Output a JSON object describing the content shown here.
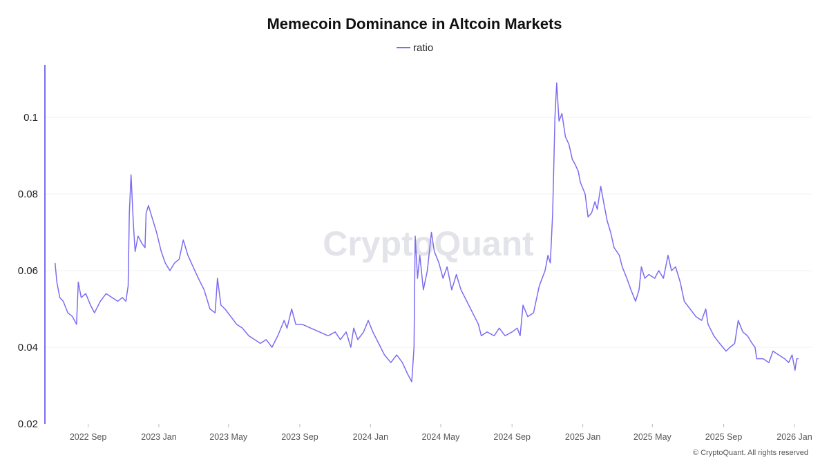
{
  "chart_data": {
    "type": "line",
    "title": "Memecoin Dominance in Altcoin Markets",
    "legend": {
      "position": "top-center",
      "entries": [
        "ratio"
      ]
    },
    "watermark": "CryptoQuant",
    "footer": "© CryptoQuant. All rights reserved",
    "color": "#7b6cf0",
    "grid": true,
    "ylim": [
      0.02,
      0.1137
    ],
    "yticks": [
      "0.02",
      "0.04",
      "0.06",
      "0.08",
      "0.1"
    ],
    "ytick_values": [
      0.02,
      0.04,
      0.06,
      0.08,
      0.1
    ],
    "xticks": [
      "2022 Sep",
      "2023 Jan",
      "2023 May",
      "2023 Sep",
      "2024 Jan",
      "2024 May",
      "2024 Sep",
      "2025 Jan",
      "2025 May",
      "2025 Sep",
      "2026 Jan"
    ],
    "xtick_dates": [
      "2022-09-01",
      "2023-01-01",
      "2023-05-01",
      "2023-09-01",
      "2024-01-01",
      "2024-05-01",
      "2024-09-01",
      "2025-01-01",
      "2025-05-01",
      "2025-09-01",
      "2026-01-01"
    ],
    "xlim": [
      "2022-06-20",
      "2026-01-25"
    ],
    "series": [
      {
        "name": "ratio",
        "x": [
          "2022-07-06",
          "2022-07-09",
          "2022-07-14",
          "2022-07-20",
          "2022-07-28",
          "2022-08-05",
          "2022-08-12",
          "2022-08-15",
          "2022-08-20",
          "2022-08-28",
          "2022-09-05",
          "2022-09-12",
          "2022-09-22",
          "2022-10-02",
          "2022-10-12",
          "2022-10-22",
          "2022-10-30",
          "2022-11-05",
          "2022-11-09",
          "2022-11-11",
          "2022-11-14",
          "2022-11-18",
          "2022-11-21",
          "2022-11-26",
          "2022-12-03",
          "2022-12-08",
          "2022-12-10",
          "2022-12-14",
          "2022-12-20",
          "2022-12-28",
          "2023-01-05",
          "2023-01-12",
          "2023-01-20",
          "2023-01-28",
          "2023-02-05",
          "2023-02-12",
          "2023-02-20",
          "2023-03-01",
          "2023-03-10",
          "2023-03-20",
          "2023-03-30",
          "2023-04-08",
          "2023-04-12",
          "2023-04-18",
          "2023-04-25",
          "2023-05-05",
          "2023-05-15",
          "2023-05-25",
          "2023-06-05",
          "2023-06-15",
          "2023-06-25",
          "2023-07-05",
          "2023-07-15",
          "2023-07-25",
          "2023-08-05",
          "2023-08-10",
          "2023-08-18",
          "2023-08-25",
          "2023-09-05",
          "2023-09-20",
          "2023-10-05",
          "2023-10-20",
          "2023-11-01",
          "2023-11-10",
          "2023-11-20",
          "2023-11-28",
          "2023-12-03",
          "2023-12-10",
          "2023-12-20",
          "2023-12-28",
          "2024-01-05",
          "2024-01-15",
          "2024-01-25",
          "2024-02-05",
          "2024-02-15",
          "2024-02-25",
          "2024-03-05",
          "2024-03-12",
          "2024-03-16",
          "2024-03-18",
          "2024-03-22",
          "2024-03-26",
          "2024-04-01",
          "2024-04-08",
          "2024-04-15",
          "2024-04-20",
          "2024-04-28",
          "2024-05-05",
          "2024-05-12",
          "2024-05-20",
          "2024-05-28",
          "2024-06-05",
          "2024-06-15",
          "2024-06-25",
          "2024-07-05",
          "2024-07-10",
          "2024-07-20",
          "2024-08-01",
          "2024-08-10",
          "2024-08-20",
          "2024-09-01",
          "2024-09-10",
          "2024-09-15",
          "2024-09-20",
          "2024-09-28",
          "2024-10-08",
          "2024-10-18",
          "2024-10-28",
          "2024-11-02",
          "2024-11-06",
          "2024-11-10",
          "2024-11-14",
          "2024-11-17",
          "2024-11-21",
          "2024-11-26",
          "2024-12-02",
          "2024-12-08",
          "2024-12-14",
          "2024-12-18",
          "2024-12-24",
          "2024-12-28",
          "2025-01-05",
          "2025-01-10",
          "2025-01-16",
          "2025-01-22",
          "2025-01-26",
          "2025-02-01",
          "2025-02-07",
          "2025-02-12",
          "2025-02-18",
          "2025-02-24",
          "2025-03-05",
          "2025-03-10",
          "2025-03-18",
          "2025-03-25",
          "2025-04-02",
          "2025-04-08",
          "2025-04-12",
          "2025-04-18",
          "2025-04-25",
          "2025-05-05",
          "2025-05-12",
          "2025-05-20",
          "2025-05-28",
          "2025-06-03",
          "2025-06-10",
          "2025-06-18",
          "2025-06-25",
          "2025-07-05",
          "2025-07-15",
          "2025-07-25",
          "2025-08-01",
          "2025-08-05",
          "2025-08-15",
          "2025-08-25",
          "2025-09-05",
          "2025-09-12",
          "2025-09-20",
          "2025-09-26",
          "2025-10-04",
          "2025-10-12",
          "2025-10-20",
          "2025-10-25",
          "2025-10-28",
          "2025-11-08",
          "2025-11-18",
          "2025-11-25",
          "2025-12-05",
          "2025-12-15",
          "2025-12-22",
          "2025-12-28",
          "2026-01-02",
          "2026-01-05",
          "2026-01-08"
        ],
        "y": [
          0.062,
          0.057,
          0.053,
          0.052,
          0.049,
          0.048,
          0.046,
          0.057,
          0.053,
          0.054,
          0.051,
          0.049,
          0.052,
          0.054,
          0.053,
          0.052,
          0.053,
          0.052,
          0.056,
          0.075,
          0.085,
          0.072,
          0.065,
          0.069,
          0.067,
          0.066,
          0.075,
          0.077,
          0.074,
          0.07,
          0.065,
          0.062,
          0.06,
          0.062,
          0.063,
          0.068,
          0.064,
          0.061,
          0.058,
          0.055,
          0.05,
          0.049,
          0.058,
          0.051,
          0.05,
          0.048,
          0.046,
          0.045,
          0.043,
          0.042,
          0.041,
          0.042,
          0.04,
          0.043,
          0.047,
          0.045,
          0.05,
          0.046,
          0.046,
          0.045,
          0.044,
          0.043,
          0.044,
          0.042,
          0.044,
          0.04,
          0.045,
          0.042,
          0.044,
          0.047,
          0.044,
          0.041,
          0.038,
          0.036,
          0.038,
          0.036,
          0.033,
          0.031,
          0.04,
          0.069,
          0.058,
          0.064,
          0.055,
          0.06,
          0.07,
          0.065,
          0.062,
          0.058,
          0.061,
          0.055,
          0.059,
          0.055,
          0.052,
          0.049,
          0.046,
          0.043,
          0.044,
          0.043,
          0.045,
          0.043,
          0.044,
          0.045,
          0.043,
          0.051,
          0.048,
          0.049,
          0.056,
          0.06,
          0.064,
          0.062,
          0.075,
          0.1,
          0.109,
          0.099,
          0.101,
          0.095,
          0.093,
          0.089,
          0.088,
          0.086,
          0.083,
          0.08,
          0.074,
          0.075,
          0.078,
          0.076,
          0.082,
          0.077,
          0.073,
          0.07,
          0.066,
          0.064,
          0.061,
          0.058,
          0.055,
          0.052,
          0.055,
          0.061,
          0.058,
          0.059,
          0.058,
          0.06,
          0.058,
          0.064,
          0.06,
          0.061,
          0.057,
          0.052,
          0.05,
          0.048,
          0.047,
          0.05,
          0.046,
          0.043,
          0.041,
          0.039,
          0.04,
          0.041,
          0.047,
          0.044,
          0.043,
          0.041,
          0.04,
          0.037,
          0.037,
          0.036,
          0.039,
          0.038,
          0.037,
          0.036,
          0.038,
          0.034,
          0.037,
          0.037
        ]
      }
    ]
  }
}
